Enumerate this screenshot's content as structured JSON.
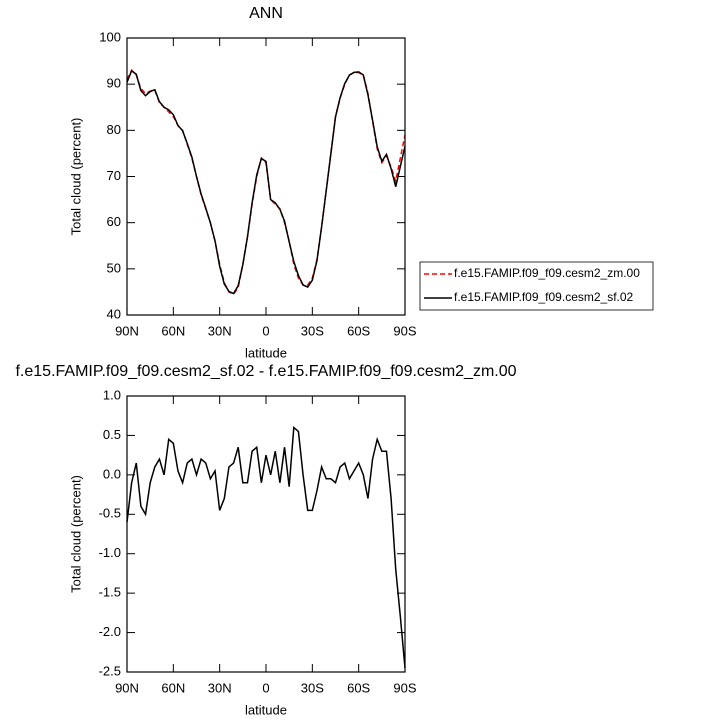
{
  "chart_data": [
    {
      "type": "line",
      "title": "ANN",
      "x_label": "latitude",
      "y_label": "Total cloud (percent)",
      "x": [
        90,
        87,
        84,
        81,
        78,
        75,
        72,
        69,
        66,
        63,
        60,
        57,
        54,
        51,
        48,
        45,
        42,
        39,
        36,
        33,
        30,
        27,
        24,
        21,
        18,
        15,
        12,
        9,
        6,
        3,
        0,
        -3,
        -6,
        -9,
        -12,
        -15,
        -18,
        -21,
        -24,
        -27,
        -30,
        -33,
        -36,
        -39,
        -42,
        -45,
        -48,
        -51,
        -54,
        -57,
        -60,
        -63,
        -66,
        -69,
        -72,
        -75,
        -78,
        -81,
        -84,
        -87,
        -90
      ],
      "xlim": [
        90,
        -90
      ],
      "xticks": [
        {
          "value": 90,
          "label": "90N"
        },
        {
          "value": 60,
          "label": "60N"
        },
        {
          "value": 30,
          "label": "30N"
        },
        0,
        {
          "value": -30,
          "label": "30S"
        },
        {
          "value": -60,
          "label": "60S"
        },
        {
          "value": -90,
          "label": "90S"
        }
      ],
      "ylim": [
        40,
        100
      ],
      "yticks": [
        40,
        50,
        60,
        70,
        80,
        90,
        100
      ],
      "legend": "right",
      "series": [
        {
          "name": "f.e15.FAMIP.f09_f09.cesm2_zm.00",
          "color": "#ff0000",
          "dash": true,
          "values": [
            91,
            93,
            92,
            89,
            88,
            88.5,
            88.7,
            86,
            85,
            84,
            83,
            81,
            80,
            77,
            74,
            70,
            66,
            63,
            60,
            56,
            51,
            47,
            45,
            44.5,
            46,
            51,
            57,
            64,
            70,
            74,
            73,
            65,
            64,
            63,
            60,
            56,
            51,
            48,
            46.5,
            46.5,
            48,
            52,
            59,
            67,
            75,
            83,
            87,
            90,
            92,
            92.5,
            92.5,
            92,
            88,
            82,
            76,
            73,
            74.5,
            72,
            69,
            74,
            79
          ]
        },
        {
          "name": "f.e15.FAMIP.f09_f09.cesm2_sf.02",
          "color": "#000000",
          "dash": false,
          "values": [
            90.4,
            92.9,
            92.15,
            88.6,
            87.5,
            88.4,
            88.8,
            86.2,
            85,
            84.45,
            83.4,
            81.05,
            79.9,
            77.15,
            74.2,
            70,
            66.2,
            63.15,
            59.95,
            56.05,
            50.55,
            46.7,
            45.1,
            44.65,
            46.35,
            50.9,
            56.9,
            64.3,
            70.35,
            73.9,
            73.25,
            65,
            64.3,
            62.9,
            60.35,
            55.85,
            51.6,
            48.55,
            46.5,
            46.05,
            47.55,
            51.8,
            59.1,
            66.95,
            74.95,
            82.9,
            87.1,
            90.15,
            91.95,
            92.55,
            92.65,
            92,
            87.7,
            82.2,
            76.45,
            73.3,
            74.8,
            71.7,
            67.8,
            72.2,
            76.55
          ]
        }
      ]
    },
    {
      "type": "line",
      "title": "f.e15.FAMIP.f09_f09.cesm2_sf.02 - f.e15.FAMIP.f09_f09.cesm2_zm.00",
      "x_label": "latitude",
      "y_label": "Total cloud (percent)",
      "x": [
        90,
        87,
        84,
        81,
        78,
        75,
        72,
        69,
        66,
        63,
        60,
        57,
        54,
        51,
        48,
        45,
        42,
        39,
        36,
        33,
        30,
        27,
        24,
        21,
        18,
        15,
        12,
        9,
        6,
        3,
        0,
        -3,
        -6,
        -9,
        -12,
        -15,
        -18,
        -21,
        -24,
        -27,
        -30,
        -33,
        -36,
        -39,
        -42,
        -45,
        -48,
        -51,
        -54,
        -57,
        -60,
        -63,
        -66,
        -69,
        -72,
        -75,
        -78,
        -81,
        -84,
        -87,
        -90
      ],
      "xlim": [
        90,
        -90
      ],
      "xticks": [
        {
          "value": 90,
          "label": "90N"
        },
        {
          "value": 60,
          "label": "60N"
        },
        {
          "value": 30,
          "label": "30N"
        },
        0,
        {
          "value": -30,
          "label": "30S"
        },
        {
          "value": -60,
          "label": "60S"
        },
        {
          "value": -90,
          "label": "90S"
        }
      ],
      "ylim": [
        -2.5,
        1.0
      ],
      "yticks": [
        -2.5,
        {
          "value": -2,
          "label": "-2.0"
        },
        -1.5,
        {
          "value": -1,
          "label": "-1.0"
        },
        -0.5,
        {
          "value": 0,
          "label": "0.0"
        },
        0.5,
        {
          "value": 1,
          "label": "1.0"
        }
      ],
      "color": "#000000",
      "values": [
        -0.6,
        -0.1,
        0.15,
        -0.4,
        -0.5,
        -0.1,
        0.1,
        0.2,
        0,
        0.45,
        0.4,
        0.05,
        -0.1,
        0.15,
        0.2,
        0,
        0.2,
        0.15,
        -0.05,
        0.05,
        -0.45,
        -0.3,
        0.1,
        0.15,
        0.35,
        -0.1,
        -0.1,
        0.3,
        0.35,
        -0.1,
        0.25,
        0,
        0.3,
        -0.1,
        0.35,
        -0.15,
        0.6,
        0.55,
        0,
        -0.45,
        -0.45,
        -0.2,
        0.1,
        -0.05,
        -0.05,
        -0.1,
        0.1,
        0.15,
        -0.05,
        0.05,
        0.15,
        0,
        -0.3,
        0.2,
        0.45,
        0.3,
        0.3,
        -0.3,
        -1.2,
        -1.8,
        -2.45
      ]
    }
  ]
}
